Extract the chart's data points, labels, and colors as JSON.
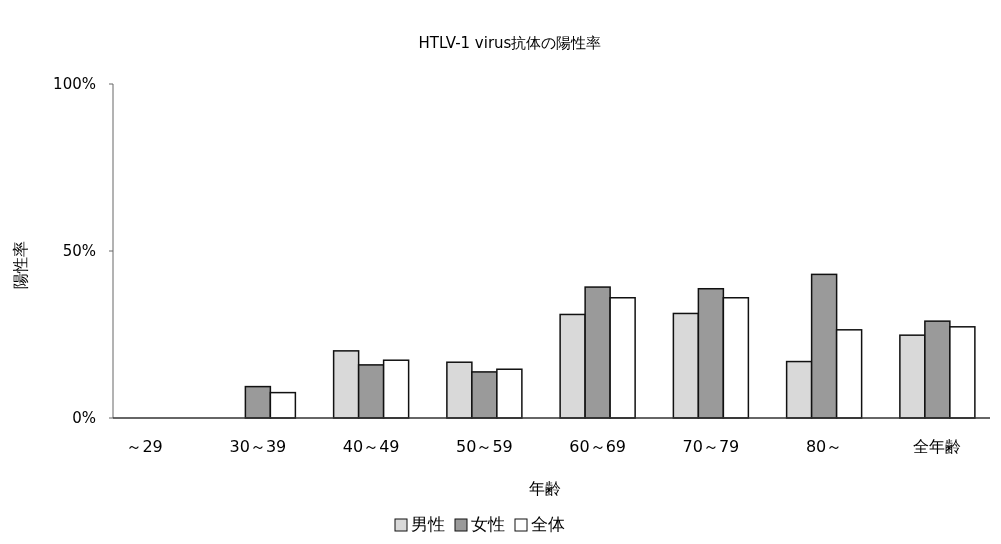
{
  "chart_data": {
    "type": "bar",
    "title": "HTLV-1 virus抗体の陽性率",
    "xlabel": "年齢",
    "ylabel": "陽性率",
    "categories": [
      "～29",
      "30～39",
      "40～49",
      "50～59",
      "60～69",
      "70～79",
      "80～",
      "全年齢"
    ],
    "series": [
      {
        "name": "男性",
        "color": "#d9d9d9",
        "values": [
          0,
          0,
          20.1,
          16.7,
          31.0,
          31.3,
          16.9,
          24.8
        ]
      },
      {
        "name": "女性",
        "color": "#9a9a9a",
        "values": [
          0,
          9.4,
          15.9,
          13.8,
          39.2,
          38.7,
          43.0,
          29.0
        ]
      },
      {
        "name": "全体",
        "color": "#ffffff",
        "values": [
          0,
          7.6,
          17.3,
          14.6,
          36.0,
          36.0,
          26.4,
          27.3
        ]
      }
    ],
    "ylim": [
      0,
      100
    ],
    "yticks": [
      {
        "value": 0,
        "label": "0%"
      },
      {
        "value": 50,
        "label": "50%"
      },
      {
        "value": 100,
        "label": "100%"
      }
    ],
    "grid": false,
    "legend": "bottom"
  }
}
